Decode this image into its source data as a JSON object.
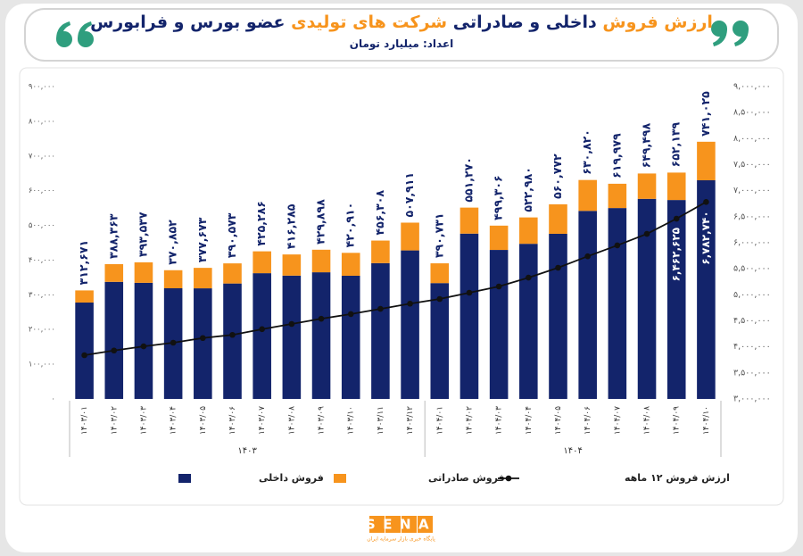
{
  "header": {
    "title_parts": [
      "ارزش فروش",
      "داخلی و صادراتی",
      "شرکت های تولیدی",
      "عضو بورس و فرابورس"
    ],
    "subtitle": "اعداد: میلیارد تومان"
  },
  "chart_data": {
    "type": "bar",
    "stacked": true,
    "categories": [
      "۱۴۰۳/۰۱",
      "۱۴۰۳/۰۲",
      "۱۴۰۳/۰۳",
      "۱۴۰۳/۰۴",
      "۱۴۰۳/۰۵",
      "۱۴۰۳/۰۶",
      "۱۴۰۳/۰۷",
      "۱۴۰۳/۰۸",
      "۱۴۰۳/۰۹",
      "۱۴۰۳/۱۰",
      "۱۴۰۳/۱۱",
      "۱۴۰۳/۱۲",
      "۱۴۰۴/۰۱",
      "۱۴۰۴/۰۲",
      "۱۴۰۴/۰۳",
      "۱۴۰۴/۰۴",
      "۱۴۰۴/۰۵",
      "۱۴۰۴/۰۶",
      "۱۴۰۴/۰۷",
      "۱۴۰۴/۰۸",
      "۱۴۰۴/۰۹",
      "۱۴۰۴/۱۰"
    ],
    "category_groups": [
      "۱۴۰۳",
      "۱۴۰۴"
    ],
    "series": [
      {
        "name": "فروش داخلی",
        "color": "#13246b",
        "values": [
          277671,
          337363,
          334537,
          318852,
          318673,
          332573,
          362286,
          355285,
          364898,
          354910,
          391308,
          427911,
          333731,
          476270,
          429306,
          446980,
          475772,
          541820,
          549979,
          576498,
          573139,
          630025
        ]
      },
      {
        "name": "فروش صادراتی",
        "color": "#f7941d",
        "values": [
          35000,
          51000,
          59000,
          52000,
          59000,
          58000,
          63000,
          61000,
          65000,
          66000,
          65000,
          80000,
          57000,
          75000,
          70000,
          76000,
          85000,
          89000,
          70000,
          73000,
          79000,
          111000
        ]
      },
      {
        "name": "ارزش فروش ۱۲ ماهه",
        "type": "line",
        "axis": "y2",
        "color": "#111111",
        "values": [
          3840000,
          3930000,
          4010000,
          4080000,
          4170000,
          4230000,
          4340000,
          4440000,
          4540000,
          4630000,
          4730000,
          4830000,
          4920000,
          5040000,
          5160000,
          5330000,
          5520000,
          5740000,
          5950000,
          6170000,
          6462625,
          6782740
        ],
        "value_labels": [
          null,
          null,
          null,
          null,
          null,
          null,
          null,
          null,
          null,
          null,
          null,
          null,
          null,
          null,
          null,
          null,
          null,
          null,
          null,
          null,
          "۶,۴۶۲,۶۲۵",
          "۶,۷۸۲,۷۴۰"
        ]
      }
    ],
    "totals": [
      312671,
      388363,
      393537,
      370852,
      377673,
      390573,
      425286,
      416285,
      429898,
      420910,
      456308,
      507911,
      390731,
      551270,
      499306,
      522980,
      560772,
      630820,
      619979,
      649498,
      652139,
      741025
    ],
    "total_labels": [
      "۳۱۲,۶۷۱",
      "۳۸۸,۳۶۳",
      "۳۹۳,۵۳۷",
      "۳۷۰,۸۵۲",
      "۳۷۷,۶۷۳",
      "۳۹۰,۵۷۳",
      "۴۲۵,۲۸۶",
      "۴۱۶,۲۸۵",
      "۴۲۹,۸۹۸",
      "۴۲۰,۹۱۰",
      "۴۵۶,۳۰۸",
      "۵۰۷,۹۱۱",
      "۳۹۰,۷۳۱",
      "۵۵۱,۲۷۰",
      "۴۹۹,۳۰۶",
      "۵۲۲,۹۸۰",
      "۵۶۰,۷۷۲",
      "۶۳۰,۸۲۰",
      "۶۱۹,۹۷۹",
      "۶۴۹,۴۹۸",
      "۶۵۲,۱۳۹",
      "۷۴۱,۰۲۵"
    ],
    "ylim": [
      0,
      900000
    ],
    "yticks": [
      {
        "value": 0,
        "label": "۰"
      },
      {
        "value": 100000,
        "label": "۱۰۰,۰۰۰"
      },
      {
        "value": 200000,
        "label": "۲۰۰,۰۰۰"
      },
      {
        "value": 300000,
        "label": "۳۰۰,۰۰۰"
      },
      {
        "value": 400000,
        "label": "۴۰۰,۰۰۰"
      },
      {
        "value": 500000,
        "label": "۵۰۰,۰۰۰"
      },
      {
        "value": 600000,
        "label": "۶۰۰,۰۰۰"
      },
      {
        "value": 700000,
        "label": "۷۰۰,۰۰۰"
      },
      {
        "value": 800000,
        "label": "۸۰۰,۰۰۰"
      },
      {
        "value": 900000,
        "label": "۹۰۰,۰۰۰"
      }
    ],
    "y2lim": [
      3000000,
      9000000
    ],
    "y2ticks": [
      {
        "value": 3000000,
        "label": "۳,۰۰۰,۰۰۰"
      },
      {
        "value": 3500000,
        "label": "۳,۵۰۰,۰۰۰"
      },
      {
        "value": 4000000,
        "label": "۴,۰۰۰,۰۰۰"
      },
      {
        "value": 4500000,
        "label": "۴,۵۰۰,۰۰۰"
      },
      {
        "value": 5000000,
        "label": "۵,۰۰۰,۰۰۰"
      },
      {
        "value": 5500000,
        "label": "۵,۵۰۰,۰۰۰"
      },
      {
        "value": 6000000,
        "label": "۶,۰۰۰,۰۰۰"
      },
      {
        "value": 6500000,
        "label": "۶,۵۰۰,۰۰۰"
      },
      {
        "value": 7000000,
        "label": "۷,۰۰۰,۰۰۰"
      },
      {
        "value": 7500000,
        "label": "۷,۵۰۰,۰۰۰"
      },
      {
        "value": 8000000,
        "label": "۸,۰۰۰,۰۰۰"
      },
      {
        "value": 8500000,
        "label": "۸,۵۰۰,۰۰۰"
      },
      {
        "value": 9000000,
        "label": "۹,۰۰۰,۰۰۰"
      }
    ],
    "grid": false
  },
  "logo": {
    "text": "SENA",
    "tagline": "پایگاه خبری بازار سرمایه ایران"
  }
}
